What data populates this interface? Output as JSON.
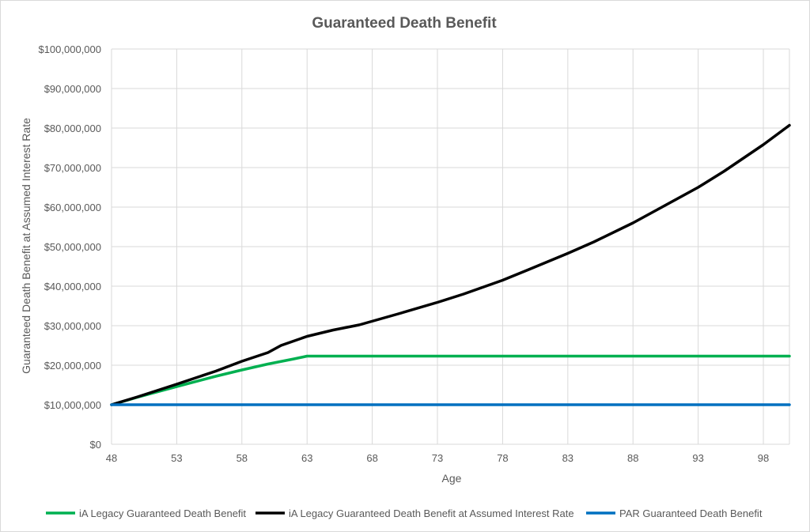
{
  "chart_data": {
    "type": "line",
    "title": "Guaranteed Death Benefit",
    "xlabel": "Age",
    "ylabel": "Guaranteed Death Benefit at Assumed Interest Rate",
    "xlim": [
      48,
      100
    ],
    "ylim": [
      0,
      100000000
    ],
    "x_ticks": [
      48,
      53,
      58,
      63,
      68,
      73,
      78,
      83,
      88,
      93,
      98
    ],
    "y_ticks": [
      0,
      10000000,
      20000000,
      30000000,
      40000000,
      50000000,
      60000000,
      70000000,
      80000000,
      90000000,
      100000000
    ],
    "y_tick_labels": [
      "$0",
      "$10,000,000",
      "$20,000,000",
      "$30,000,000",
      "$40,000,000",
      "$50,000,000",
      "$60,000,000",
      "$70,000,000",
      "$80,000,000",
      "$90,000,000",
      "$100,000,000"
    ],
    "grid": true,
    "legend_position": "bottom",
    "series": [
      {
        "name": "iA Legacy Guaranteed Death Benefit",
        "color": "#00b050",
        "x": [
          48,
          50,
          53,
          56,
          58,
          60,
          62,
          63,
          100
        ],
        "y": [
          10000000,
          11900000,
          14600000,
          17200000,
          18800000,
          20300000,
          21600000,
          22300000,
          22300000
        ]
      },
      {
        "name": "iA Legacy Guaranteed Death Benefit at Assumed Interest Rate",
        "color": "#000000",
        "x": [
          48,
          50,
          53,
          56,
          58,
          60,
          61,
          63,
          65,
          67,
          70,
          73,
          75,
          78,
          80,
          83,
          85,
          88,
          90,
          93,
          95,
          98,
          100
        ],
        "y": [
          10000000,
          12000000,
          15200000,
          18500000,
          21000000,
          23200000,
          25000000,
          27300000,
          28900000,
          30200000,
          33000000,
          35900000,
          38000000,
          41500000,
          44200000,
          48300000,
          51200000,
          56000000,
          59600000,
          65000000,
          69100000,
          75800000,
          80700000
        ]
      },
      {
        "name": "PAR Guaranteed Death Benefit",
        "color": "#0070c0",
        "x": [
          48,
          100
        ],
        "y": [
          10000000,
          10000000
        ]
      }
    ]
  }
}
